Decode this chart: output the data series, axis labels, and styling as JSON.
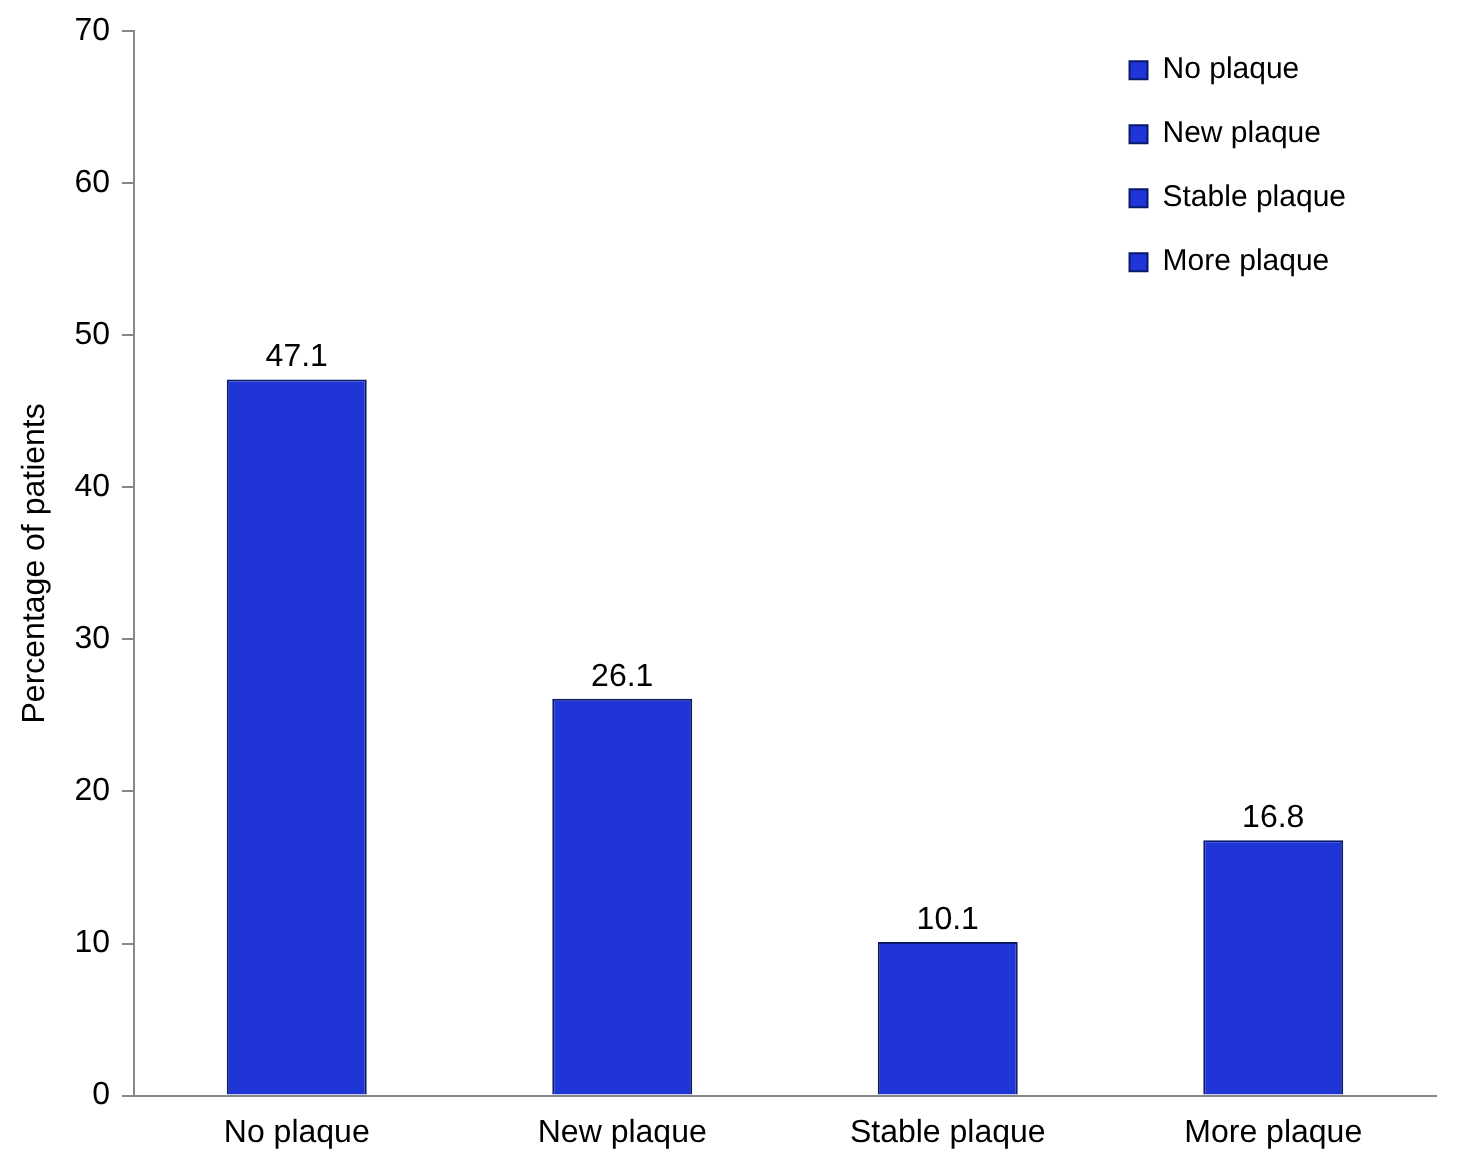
{
  "chart_data": {
    "type": "bar",
    "ylabel": "Percentage of patients",
    "categories": [
      "No plaque",
      "New plaque",
      "Stable plaque",
      "More plaque"
    ],
    "series": [
      {
        "name": "No plaque",
        "color": "#1f35d6",
        "values": [
          47.1,
          null,
          null,
          null
        ]
      },
      {
        "name": "New plaque",
        "color": "#1f35d6",
        "values": [
          null,
          26.1,
          null,
          null
        ]
      },
      {
        "name": "Stable plaque",
        "color": "#1f35d6",
        "values": [
          null,
          null,
          10.1,
          null
        ]
      },
      {
        "name": "More plaque",
        "color": "#1f35d6",
        "values": [
          null,
          null,
          null,
          16.8
        ]
      }
    ],
    "ylim": [
      0,
      70
    ],
    "yticks": [
      0,
      10,
      20,
      30,
      40,
      50,
      60,
      70
    ],
    "grid": false,
    "legend": "top right",
    "data_labels": true
  }
}
